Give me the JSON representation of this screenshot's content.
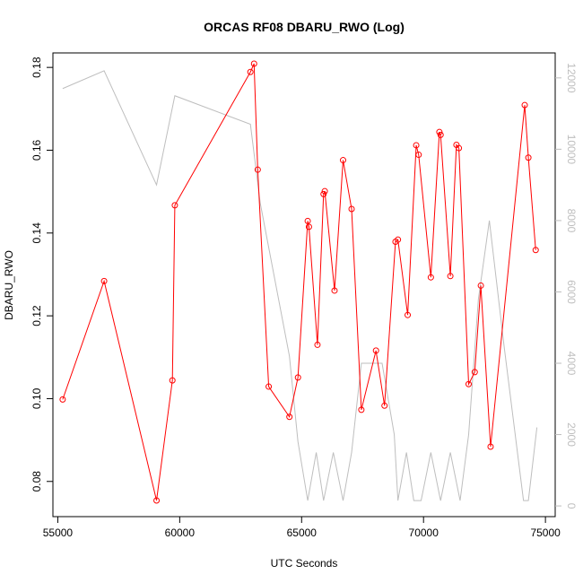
{
  "chart_data": {
    "type": "line",
    "title": "ORCAS RF08 DBARU_RWO (Log)",
    "xlabel": "UTC Seconds",
    "ylabel": "DBARU_RWO",
    "xlim": [
      54800,
      75400
    ],
    "ylim": [
      0.0715,
      0.1835
    ],
    "y2lim": [
      -300,
      12700
    ],
    "x_ticks": [
      55000,
      60000,
      65000,
      70000,
      75000
    ],
    "x_tick_labels": [
      "55000",
      "60000",
      "65000",
      "70000",
      "75000"
    ],
    "y_ticks": [
      0.08,
      0.1,
      0.12,
      0.14,
      0.16,
      0.18
    ],
    "y_tick_labels": [
      "0.08",
      "0.10",
      "0.12",
      "0.14",
      "0.16",
      "0.18"
    ],
    "y2_ticks": [
      0,
      2000,
      4000,
      6000,
      8000,
      10000,
      12000
    ],
    "y2_tick_labels": [
      "0",
      "2000",
      "4000",
      "6000",
      "8000",
      "10000",
      "12000"
    ],
    "colors": {
      "primary": "#ff0000",
      "secondary": "#bebebe",
      "axis": "#000000"
    },
    "series": [
      {
        "axis": "left",
        "style": "line+points",
        "color": "#ff0000",
        "x": [
          55200,
          56900,
          59050,
          59700,
          59800,
          62900,
          63050,
          63200,
          63650,
          64500,
          64850,
          65250,
          65300,
          65650,
          65900,
          65950,
          66350,
          66700,
          67050,
          67450,
          68050,
          68400,
          68850,
          68950,
          69350,
          69700,
          69800,
          70300,
          70650,
          70700,
          71100,
          71350,
          71450,
          71850,
          72100,
          72350,
          72750,
          74150,
          74300,
          74600
        ],
        "y": [
          0.0998,
          0.1284,
          0.0754,
          0.1044,
          0.1467,
          0.1789,
          0.1809,
          0.1553,
          0.1029,
          0.0956,
          0.1051,
          0.1429,
          0.1415,
          0.113,
          0.1494,
          0.1501,
          0.1261,
          0.1576,
          0.1458,
          0.0973,
          0.1116,
          0.0983,
          0.1379,
          0.1384,
          0.1202,
          0.1612,
          0.1589,
          0.1293,
          0.1644,
          0.1637,
          0.1296,
          0.1613,
          0.1605,
          0.1035,
          0.1064,
          0.1273,
          0.0884,
          0.1709,
          0.1582,
          0.1359
        ]
      },
      {
        "axis": "right",
        "style": "line",
        "color": "#bebebe",
        "x": [
          55200,
          56900,
          59050,
          59800,
          62900,
          63300,
          64500,
          64850,
          65250,
          65600,
          65900,
          66300,
          66700,
          67050,
          67450,
          67900,
          68300,
          68800,
          68950,
          69300,
          69600,
          69900,
          70300,
          70700,
          71100,
          71500,
          71850,
          72250,
          72700,
          73300,
          74100,
          74300,
          74650
        ],
        "y": [
          11700,
          12200,
          9000,
          11500,
          10700,
          8500,
          4200,
          1800,
          150,
          1500,
          150,
          1500,
          150,
          1500,
          4000,
          4000,
          4000,
          2000,
          150,
          1500,
          150,
          150,
          1500,
          150,
          1500,
          150,
          2000,
          5800,
          8000,
          4500,
          150,
          150,
          2200
        ]
      }
    ]
  }
}
